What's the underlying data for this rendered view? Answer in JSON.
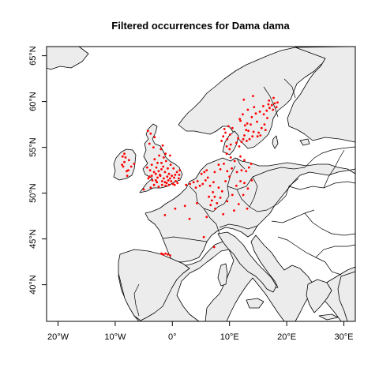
{
  "map": {
    "title": "Filtered occurrences for Dama dama",
    "x_ticks": [
      {
        "value": -20,
        "label": "20°W"
      },
      {
        "value": -10,
        "label": "10°W"
      },
      {
        "value": 0,
        "label": "0°"
      },
      {
        "value": 10,
        "label": "10°E"
      },
      {
        "value": 20,
        "label": "20°E"
      },
      {
        "value": 30,
        "label": "30°E"
      }
    ],
    "y_ticks": [
      {
        "value": 40,
        "label": "40°N"
      },
      {
        "value": 45,
        "label": "45°N"
      },
      {
        "value": 50,
        "label": "50°N"
      },
      {
        "value": 55,
        "label": "55°N"
      },
      {
        "value": 60,
        "label": "60°N"
      },
      {
        "value": 65,
        "label": "65°N"
      }
    ],
    "lon_range": [
      -22,
      32
    ],
    "lat_range": [
      36,
      66
    ],
    "land_color": "#ececec",
    "point_color": "#ff0000",
    "occurrences": [
      [
        -8.7,
        54.0
      ],
      [
        -8.4,
        53.4
      ],
      [
        -8.6,
        52.9
      ],
      [
        -8.0,
        52.4
      ],
      [
        -7.6,
        53.6
      ],
      [
        -7.2,
        52.9
      ],
      [
        -8.2,
        53.9
      ],
      [
        -7.9,
        51.9
      ],
      [
        -8.8,
        53.1
      ],
      [
        -6.7,
        53.2
      ],
      [
        -8.4,
        54.3
      ],
      [
        -7.7,
        52.5
      ],
      [
        -4.2,
        51.6
      ],
      [
        -3.6,
        51.9
      ],
      [
        -3.2,
        52.3
      ],
      [
        -2.9,
        51.4
      ],
      [
        -2.6,
        51.7
      ],
      [
        -2.2,
        52.0
      ],
      [
        -1.8,
        51.3
      ],
      [
        -1.3,
        51.2
      ],
      [
        -0.7,
        51.4
      ],
      [
        -0.4,
        51.6
      ],
      [
        -0.9,
        51.8
      ],
      [
        -1.5,
        51.6
      ],
      [
        -2.1,
        51.9
      ],
      [
        -2.4,
        52.4
      ],
      [
        -1.9,
        52.6
      ],
      [
        -1.3,
        52.3
      ],
      [
        -0.6,
        52.1
      ],
      [
        -0.1,
        51.9
      ],
      [
        0.3,
        51.7
      ],
      [
        0.6,
        51.3
      ],
      [
        1.1,
        51.6
      ],
      [
        1.3,
        52.5
      ],
      [
        0.8,
        52.3
      ],
      [
        0.2,
        52.7
      ],
      [
        -0.3,
        53.1
      ],
      [
        -1.1,
        53.5
      ],
      [
        -1.5,
        53.9
      ],
      [
        -1.9,
        53.3
      ],
      [
        -2.6,
        53.3
      ],
      [
        -3.1,
        53.7
      ],
      [
        -3.6,
        53.1
      ],
      [
        -4.4,
        52.8
      ],
      [
        -3.9,
        52.5
      ],
      [
        -2.8,
        52.8
      ],
      [
        -2.3,
        54.1
      ],
      [
        -2.0,
        54.8
      ],
      [
        -1.7,
        55.2
      ],
      [
        -3.3,
        55.0
      ],
      [
        -4.0,
        55.4
      ],
      [
        -3.8,
        56.5
      ],
      [
        -4.3,
        56.8
      ],
      [
        -3.1,
        56.1
      ],
      [
        -5.0,
        50.4
      ],
      [
        -3.8,
        50.6
      ],
      [
        -3.2,
        50.9
      ],
      [
        -2.4,
        50.7
      ],
      [
        -1.8,
        50.9
      ],
      [
        -1.2,
        50.8
      ],
      [
        -0.6,
        50.9
      ],
      [
        0.1,
        51.0
      ],
      [
        0.9,
        51.1
      ],
      [
        0.4,
        50.9
      ],
      [
        -0.2,
        51.3
      ],
      [
        -1.0,
        51.1
      ],
      [
        -2.7,
        51.2
      ],
      [
        -3.5,
        51.4
      ],
      [
        -4.0,
        51.8
      ],
      [
        -2.9,
        52.1
      ],
      [
        -1.6,
        52.9
      ],
      [
        -0.8,
        52.7
      ],
      [
        0.5,
        52.0
      ],
      [
        1.2,
        52.0
      ],
      [
        -1.2,
        54.3
      ],
      [
        -0.4,
        54.1
      ],
      [
        -1.6,
        43.3
      ],
      [
        -1.2,
        43.4
      ],
      [
        -0.8,
        43.3
      ],
      [
        -0.4,
        43.2
      ],
      [
        -1.9,
        43.4
      ],
      [
        2.4,
        50.9
      ],
      [
        3.1,
        51.0
      ],
      [
        3.7,
        51.2
      ],
      [
        4.4,
        51.3
      ],
      [
        4.1,
        50.6
      ],
      [
        4.8,
        50.8
      ],
      [
        5.3,
        51.0
      ],
      [
        5.8,
        51.4
      ],
      [
        5.1,
        52.1
      ],
      [
        5.6,
        52.3
      ],
      [
        6.2,
        51.7
      ],
      [
        6.0,
        52.5
      ],
      [
        6.6,
        50.8
      ],
      [
        7.2,
        51.2
      ],
      [
        7.1,
        50.1
      ],
      [
        6.4,
        49.6
      ],
      [
        6.9,
        49.2
      ],
      [
        7.4,
        49.6
      ],
      [
        6.7,
        48.7
      ],
      [
        7.5,
        48.3
      ],
      [
        7.8,
        48.9
      ],
      [
        8.4,
        49.5
      ],
      [
        8.7,
        50.2
      ],
      [
        8.1,
        50.6
      ],
      [
        9.3,
        51.3
      ],
      [
        10.0,
        51.8
      ],
      [
        9.6,
        52.4
      ],
      [
        10.4,
        52.7
      ],
      [
        11.3,
        52.3
      ],
      [
        12.1,
        52.5
      ],
      [
        12.9,
        52.4
      ],
      [
        13.4,
        52.8
      ],
      [
        13.8,
        53.2
      ],
      [
        12.6,
        53.6
      ],
      [
        11.9,
        54.0
      ],
      [
        10.9,
        53.5
      ],
      [
        10.2,
        53.9
      ],
      [
        9.5,
        54.3
      ],
      [
        9.0,
        53.2
      ],
      [
        8.4,
        52.6
      ],
      [
        8.1,
        53.1
      ],
      [
        7.4,
        52.3
      ],
      [
        11.2,
        50.8
      ],
      [
        11.9,
        51.3
      ],
      [
        12.6,
        51.1
      ],
      [
        13.2,
        50.5
      ],
      [
        13.9,
        51.4
      ],
      [
        12.4,
        49.8
      ],
      [
        11.6,
        48.8
      ],
      [
        10.8,
        48.1
      ],
      [
        9.6,
        49.1
      ],
      [
        10.5,
        49.8
      ],
      [
        13.1,
        48.3
      ],
      [
        8.9,
        47.7
      ],
      [
        0.5,
        48.3
      ],
      [
        -1.3,
        47.6
      ],
      [
        3.0,
        47.2
      ],
      [
        5.5,
        45.2
      ],
      [
        7.3,
        44.1
      ],
      [
        4.3,
        48.9
      ],
      [
        6.0,
        47.4
      ],
      [
        2.2,
        48.6
      ],
      [
        8.6,
        55.7
      ],
      [
        8.9,
        56.2
      ],
      [
        9.3,
        56.6
      ],
      [
        9.6,
        55.9
      ],
      [
        10.1,
        56.4
      ],
      [
        9.1,
        57.0
      ],
      [
        9.8,
        57.3
      ],
      [
        10.5,
        57.1
      ],
      [
        10.2,
        55.3
      ],
      [
        11.2,
        55.5
      ],
      [
        11.7,
        55.1
      ],
      [
        12.1,
        55.6
      ],
      [
        11.5,
        56.0
      ],
      [
        12.4,
        55.9
      ],
      [
        9.5,
        55.1
      ],
      [
        10.0,
        54.8
      ],
      [
        12.6,
        56.3
      ],
      [
        13.0,
        55.7
      ],
      [
        13.5,
        55.9
      ],
      [
        14.0,
        56.2
      ],
      [
        13.3,
        56.8
      ],
      [
        14.2,
        56.7
      ],
      [
        15.1,
        56.6
      ],
      [
        15.6,
        57.1
      ],
      [
        16.1,
        57.5
      ],
      [
        14.8,
        57.8
      ],
      [
        13.9,
        58.3
      ],
      [
        14.6,
        58.7
      ],
      [
        15.3,
        58.9
      ],
      [
        16.0,
        58.6
      ],
      [
        16.5,
        59.0
      ],
      [
        17.0,
        59.3
      ],
      [
        17.4,
        59.6
      ],
      [
        17.9,
        59.8
      ],
      [
        18.2,
        59.4
      ],
      [
        17.6,
        59.1
      ],
      [
        16.8,
        59.7
      ],
      [
        15.9,
        59.5
      ],
      [
        14.3,
        59.4
      ],
      [
        13.2,
        59.1
      ],
      [
        12.3,
        58.6
      ],
      [
        11.9,
        57.9
      ],
      [
        12.7,
        57.4
      ],
      [
        13.7,
        57.5
      ],
      [
        16.9,
        60.1
      ],
      [
        17.7,
        60.4
      ],
      [
        18.4,
        59.9
      ],
      [
        14.9,
        56.2
      ],
      [
        12.9,
        56.9
      ],
      [
        15.4,
        56.3
      ],
      [
        16.3,
        56.9
      ],
      [
        11.8,
        58.1
      ],
      [
        12.5,
        60.2
      ],
      [
        14.1,
        60.6
      ],
      [
        13.1,
        57.6
      ],
      [
        16.6,
        58.2
      ]
    ]
  }
}
